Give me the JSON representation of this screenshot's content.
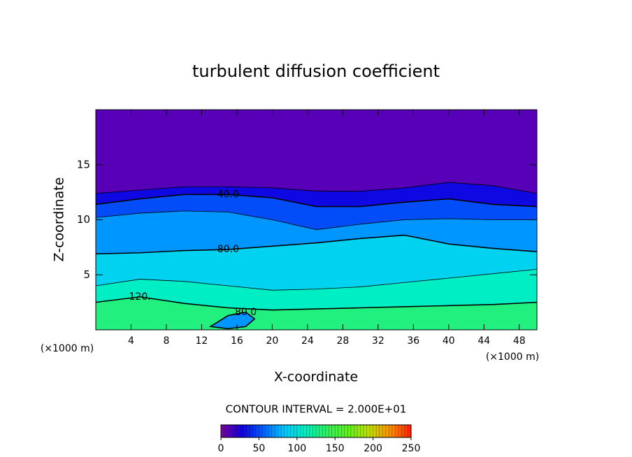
{
  "chart_data": {
    "type": "contour",
    "title": "turbulent diffusion coefficient",
    "xlabel": "X-coordinate",
    "ylabel": "Z-coordinate",
    "x_unit": "(×1000 m)",
    "xlim": [
      0,
      50
    ],
    "ylim": [
      0,
      20
    ],
    "xticks": [
      4,
      8,
      12,
      16,
      20,
      24,
      28,
      32,
      36,
      40,
      44,
      48
    ],
    "yticks": [
      5,
      10,
      15
    ],
    "interval_label": "CONTOUR INTERVAL = 2.000E+01",
    "interval": 20,
    "colormap": [
      "#7f00a2",
      "#1000e0",
      "#0060ff",
      "#00c8ff",
      "#00f0c0",
      "#30f060",
      "#60f020",
      "#c0e000",
      "#ff9000",
      "#ff2000"
    ],
    "colorbar": {
      "lim": [
        0,
        250
      ],
      "ticks": [
        0,
        50,
        100,
        150,
        200,
        250
      ]
    },
    "contours": [
      {
        "level": 20,
        "x": [
          0,
          5,
          10,
          15,
          20,
          25,
          30,
          35,
          40,
          45,
          50
        ],
        "y": [
          12.4,
          12.7,
          13.0,
          13.0,
          12.9,
          12.6,
          12.6,
          12.9,
          13.4,
          13.1,
          12.4
        ]
      },
      {
        "level": 40,
        "label": "40.0",
        "x": [
          0,
          5,
          10,
          15,
          20,
          25,
          30,
          35,
          40,
          45,
          50
        ],
        "y": [
          11.4,
          11.9,
          12.3,
          12.3,
          12.0,
          11.2,
          11.2,
          11.6,
          11.9,
          11.4,
          11.2
        ]
      },
      {
        "level": 60,
        "x": [
          0,
          5,
          10,
          15,
          20,
          25,
          30,
          35,
          40,
          45,
          50
        ],
        "y": [
          10.2,
          10.6,
          10.8,
          10.7,
          10.0,
          9.1,
          9.6,
          10.0,
          10.1,
          10.0,
          10.0
        ]
      },
      {
        "level": 80,
        "label": "80.0",
        "x": [
          0,
          5,
          10,
          15,
          20,
          25,
          30,
          35,
          40,
          45,
          50
        ],
        "y": [
          6.9,
          7.0,
          7.2,
          7.3,
          7.6,
          7.9,
          8.3,
          8.6,
          7.8,
          7.4,
          7.1
        ]
      },
      {
        "level": 100,
        "x": [
          0,
          5,
          10,
          15,
          20,
          25,
          30,
          35,
          40,
          45,
          50
        ],
        "y": [
          4.0,
          4.6,
          4.4,
          4.0,
          3.6,
          3.7,
          3.9,
          4.3,
          4.7,
          5.1,
          5.5
        ]
      },
      {
        "level": 120,
        "label": "120.",
        "x": [
          0,
          5,
          10,
          15,
          20,
          25,
          30,
          35,
          40,
          45,
          50
        ],
        "y": [
          2.5,
          3.0,
          2.4,
          2.0,
          1.8,
          1.9,
          2.0,
          2.1,
          2.2,
          2.3,
          2.5
        ]
      },
      {
        "level": 80,
        "label": "80.0",
        "closed": true,
        "x": [
          13,
          15,
          17,
          18,
          17,
          15,
          13
        ],
        "y": [
          0.3,
          1.3,
          1.6,
          1.0,
          0.3,
          0.1,
          0.3
        ]
      }
    ]
  }
}
